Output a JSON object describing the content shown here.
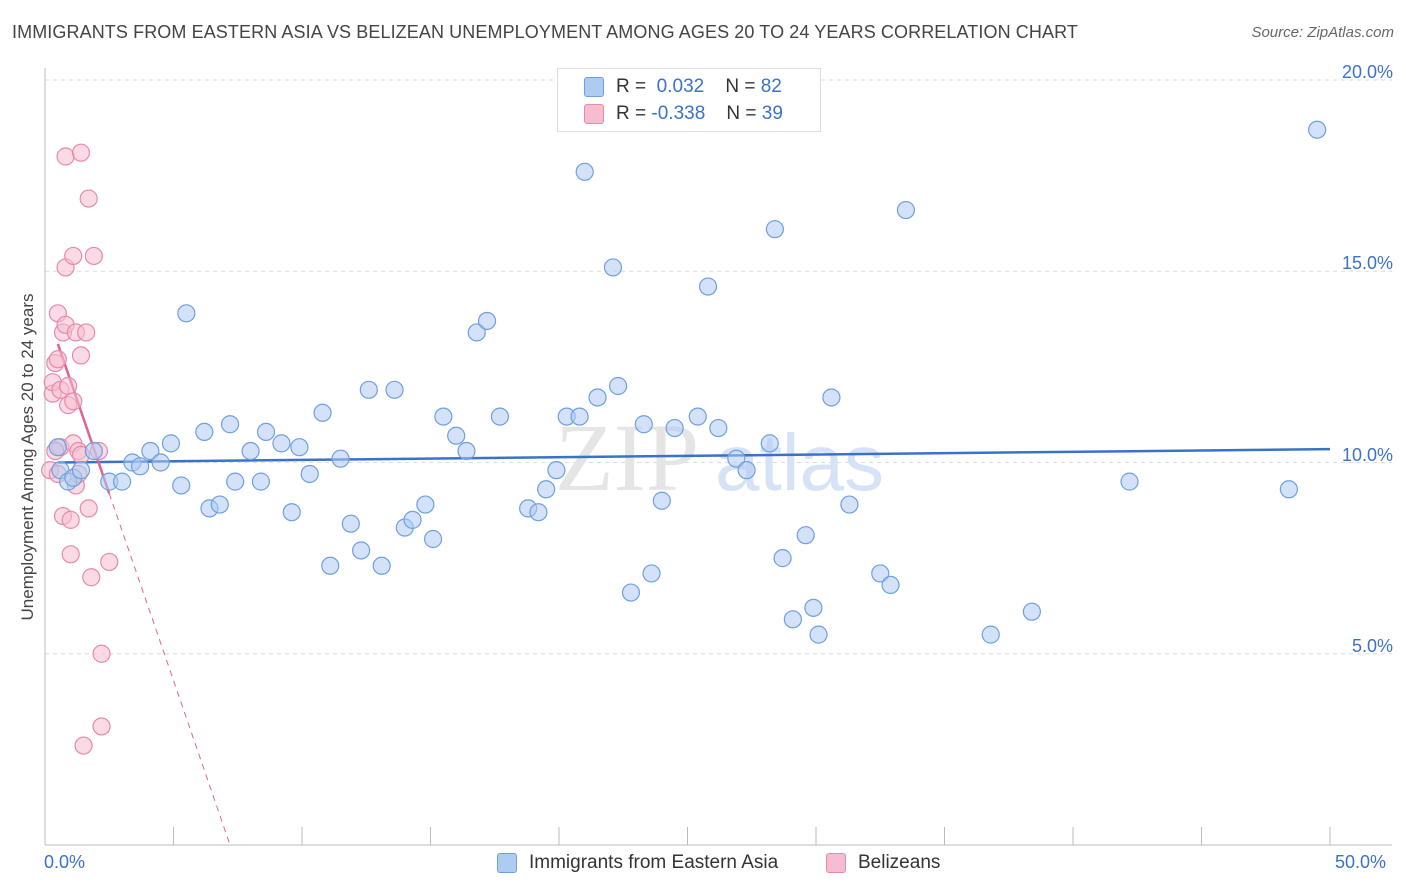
{
  "title": "IMMIGRANTS FROM EASTERN ASIA VS BELIZEAN UNEMPLOYMENT AMONG AGES 20 TO 24 YEARS CORRELATION CHART",
  "source": "Source: ZipAtlas.com",
  "watermark": {
    "zip": "ZIP",
    "atlas": "atlas"
  },
  "legend": {
    "r_label": "R =",
    "n_label": "N =",
    "series": [
      {
        "name": "Immigrants from Eastern Asia",
        "r": "0.032",
        "n": "82",
        "fill": "#aecbf2",
        "stroke": "#6f9fe0"
      },
      {
        "name": "Belizeans",
        "r": "-0.338",
        "n": "39",
        "fill": "#f6bdd0",
        "stroke": "#e889a8"
      }
    ]
  },
  "chart_data": {
    "type": "scatter",
    "title": "IMMIGRANTS FROM EASTERN ASIA VS BELIZEAN UNEMPLOYMENT AMONG AGES 20 TO 24 YEARS CORRELATION CHART",
    "xlabel": "",
    "ylabel": "Unemployment Among Ages 20 to 24 years",
    "xlim": [
      0,
      50
    ],
    "ylim": [
      0,
      20
    ],
    "x_tick_labels": {
      "min": "0.0%",
      "max": "50.0%"
    },
    "y_ticks": [
      {
        "value": 5,
        "label": "5.0%"
      },
      {
        "value": 10,
        "label": "10.0%"
      },
      {
        "value": 15,
        "label": "15.0%"
      },
      {
        "value": 20,
        "label": "20.0%"
      }
    ],
    "series": [
      {
        "name": "Immigrants from Eastern Asia",
        "color": "#6f9fe0",
        "fill": "#aecbf2",
        "trend": {
          "x0": 0.5,
          "y0": 10.0,
          "x1": 50,
          "y1": 10.35,
          "dashed_from": null
        },
        "points": [
          [
            0.6,
            9.8
          ],
          [
            0.9,
            9.5
          ],
          [
            1.1,
            9.6
          ],
          [
            1.4,
            9.8
          ],
          [
            1.9,
            10.3
          ],
          [
            2.5,
            9.5
          ],
          [
            3.0,
            9.5
          ],
          [
            3.4,
            10.0
          ],
          [
            3.7,
            9.9
          ],
          [
            4.1,
            10.3
          ],
          [
            4.5,
            10.0
          ],
          [
            4.9,
            10.5
          ],
          [
            5.3,
            9.4
          ],
          [
            5.5,
            13.9
          ],
          [
            6.2,
            10.8
          ],
          [
            6.4,
            8.8
          ],
          [
            6.8,
            8.9
          ],
          [
            7.2,
            11.0
          ],
          [
            7.4,
            9.5
          ],
          [
            8.0,
            10.3
          ],
          [
            8.4,
            9.5
          ],
          [
            8.6,
            10.8
          ],
          [
            9.2,
            10.5
          ],
          [
            9.6,
            8.7
          ],
          [
            9.9,
            10.4
          ],
          [
            10.3,
            9.7
          ],
          [
            10.8,
            11.3
          ],
          [
            11.1,
            7.3
          ],
          [
            11.5,
            10.1
          ],
          [
            11.9,
            8.4
          ],
          [
            12.3,
            7.7
          ],
          [
            12.6,
            11.9
          ],
          [
            13.1,
            7.3
          ],
          [
            13.6,
            11.9
          ],
          [
            14.0,
            8.3
          ],
          [
            14.3,
            8.5
          ],
          [
            14.8,
            8.9
          ],
          [
            15.1,
            8.0
          ],
          [
            15.5,
            11.2
          ],
          [
            16.0,
            10.7
          ],
          [
            16.4,
            10.3
          ],
          [
            16.8,
            13.4
          ],
          [
            17.2,
            13.7
          ],
          [
            17.7,
            11.2
          ],
          [
            18.8,
            8.8
          ],
          [
            19.2,
            8.7
          ],
          [
            19.5,
            9.3
          ],
          [
            19.9,
            9.8
          ],
          [
            20.3,
            11.2
          ],
          [
            20.8,
            11.2
          ],
          [
            21.0,
            17.6
          ],
          [
            21.5,
            11.7
          ],
          [
            22.1,
            15.1
          ],
          [
            22.3,
            12.0
          ],
          [
            22.8,
            6.6
          ],
          [
            23.3,
            11.0
          ],
          [
            23.6,
            7.1
          ],
          [
            24.0,
            9.0
          ],
          [
            24.5,
            10.9
          ],
          [
            25.4,
            11.2
          ],
          [
            25.8,
            14.6
          ],
          [
            26.2,
            10.9
          ],
          [
            26.9,
            10.1
          ],
          [
            27.3,
            9.8
          ],
          [
            28.2,
            10.5
          ],
          [
            28.4,
            16.1
          ],
          [
            28.7,
            7.5
          ],
          [
            29.1,
            5.9
          ],
          [
            29.6,
            8.1
          ],
          [
            29.9,
            6.2
          ],
          [
            30.1,
            5.5
          ],
          [
            30.6,
            11.7
          ],
          [
            31.3,
            8.9
          ],
          [
            32.5,
            7.1
          ],
          [
            32.9,
            6.8
          ],
          [
            33.5,
            16.6
          ],
          [
            36.8,
            5.5
          ],
          [
            38.4,
            6.1
          ],
          [
            42.2,
            9.5
          ],
          [
            48.4,
            9.3
          ],
          [
            49.5,
            18.7
          ],
          [
            0.5,
            10.4
          ]
        ]
      },
      {
        "name": "Belizeans",
        "color": "#e889a8",
        "fill": "#f6bdd0",
        "trend": {
          "x0": 0.5,
          "y0": 13.1,
          "x1": 7.2,
          "y1": 0.0,
          "solid_until_x": 2.5
        },
        "points": [
          [
            0.2,
            9.8
          ],
          [
            0.3,
            11.8
          ],
          [
            0.3,
            12.1
          ],
          [
            0.4,
            12.6
          ],
          [
            0.5,
            13.9
          ],
          [
            0.5,
            12.7
          ],
          [
            0.5,
            9.7
          ],
          [
            0.6,
            11.9
          ],
          [
            0.6,
            10.4
          ],
          [
            0.7,
            13.4
          ],
          [
            0.7,
            8.6
          ],
          [
            0.8,
            13.6
          ],
          [
            0.8,
            15.1
          ],
          [
            0.8,
            18.0
          ],
          [
            0.9,
            12.0
          ],
          [
            0.9,
            11.5
          ],
          [
            1.0,
            8.5
          ],
          [
            1.0,
            7.6
          ],
          [
            1.1,
            11.6
          ],
          [
            1.1,
            10.5
          ],
          [
            1.1,
            15.4
          ],
          [
            1.2,
            9.4
          ],
          [
            1.2,
            13.4
          ],
          [
            1.3,
            10.3
          ],
          [
            1.3,
            9.7
          ],
          [
            1.4,
            12.8
          ],
          [
            1.4,
            18.1
          ],
          [
            1.5,
            2.6
          ],
          [
            1.6,
            13.4
          ],
          [
            1.7,
            16.9
          ],
          [
            1.7,
            8.8
          ],
          [
            1.8,
            7.0
          ],
          [
            1.9,
            15.4
          ],
          [
            2.1,
            10.3
          ],
          [
            2.2,
            5.0
          ],
          [
            2.2,
            3.1
          ],
          [
            2.5,
            7.4
          ],
          [
            0.4,
            10.3
          ],
          [
            1.4,
            10.2
          ]
        ]
      }
    ]
  }
}
